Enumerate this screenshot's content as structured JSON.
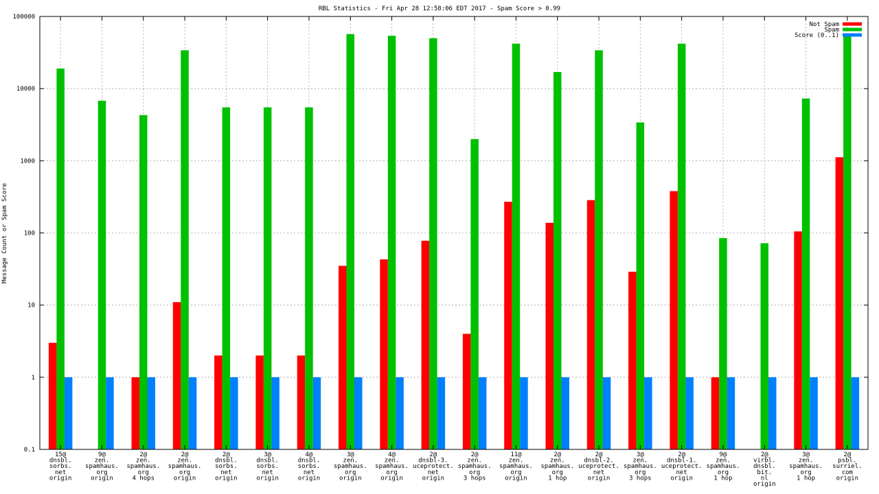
{
  "chart_data": {
    "type": "bar",
    "title": "RBL Statistics - Fri Apr 28 12:58:06 EDT 2017 - Spam Score > 0.99",
    "xlabel": "",
    "ylabel": "Message Count or Spam Score",
    "yscale": "log",
    "ylim": [
      0.1,
      100000
    ],
    "yticks": [
      "0.1",
      "1",
      "10",
      "100",
      "1000",
      "10000",
      "100000"
    ],
    "legend_position": "top-right",
    "grid": true,
    "categories": [
      [
        "15@",
        "dnsbl.",
        "sorbs.",
        "net",
        "origin"
      ],
      [
        "9@",
        "zen.",
        "spamhaus.",
        "org",
        "origin"
      ],
      [
        "2@",
        "zen.",
        "spamhaus.",
        "org",
        "4 hops"
      ],
      [
        "2@",
        "zen.",
        "spamhaus.",
        "org",
        "origin"
      ],
      [
        "2@",
        "dnsbl.",
        "sorbs.",
        "net",
        "origin"
      ],
      [
        "3@",
        "dnsbl.",
        "sorbs.",
        "net",
        "origin"
      ],
      [
        "4@",
        "dnsbl.",
        "sorbs.",
        "net",
        "origin"
      ],
      [
        "3@",
        "zen.",
        "spamhaus.",
        "org",
        "origin"
      ],
      [
        "4@",
        "zen.",
        "spamhaus.",
        "org",
        "origin"
      ],
      [
        "2@",
        "dnsbl-3.",
        "uceprotect.",
        "net",
        "origin"
      ],
      [
        "2@",
        "zen.",
        "spamhaus.",
        "org",
        "3 hops"
      ],
      [
        "11@",
        "zen.",
        "spamhaus.",
        "org",
        "origin"
      ],
      [
        "2@",
        "zen.",
        "spamhaus.",
        "org",
        "1 hop"
      ],
      [
        "2@",
        "dnsbl-2.",
        "uceprotect.",
        "net",
        "origin"
      ],
      [
        "3@",
        "zen.",
        "spamhaus.",
        "org",
        "3 hops"
      ],
      [
        "2@",
        "dnsbl-1.",
        "uceprotect.",
        "net",
        "origin"
      ],
      [
        "9@",
        "zen.",
        "spamhaus.",
        "org",
        "1 hop"
      ],
      [
        "2@",
        "virbl.",
        "dnsbl.",
        "bit.",
        "nl",
        "origin"
      ],
      [
        "3@",
        "zen.",
        "spamhaus.",
        "org",
        "1 hop"
      ],
      [
        "2@",
        "psbl.",
        "surriel.",
        "com",
        "origin"
      ]
    ],
    "series": [
      {
        "name": "Not Spam",
        "color": "#ff0000",
        "values": [
          3,
          null,
          1,
          11,
          2,
          2,
          2,
          35,
          43,
          78,
          4,
          270,
          138,
          285,
          29,
          380,
          1,
          null,
          105,
          1120
        ]
      },
      {
        "name": "Spam",
        "color": "#00c000",
        "values": [
          19000,
          6800,
          4300,
          34000,
          5500,
          5500,
          5500,
          57000,
          54000,
          50000,
          2000,
          42000,
          17000,
          34000,
          3400,
          42000,
          85,
          72,
          7300,
          53000
        ]
      },
      {
        "name": "Score (0..1)",
        "color": "#0080ff",
        "values": [
          1,
          1,
          1,
          1,
          1,
          1,
          1,
          1,
          1,
          1,
          1,
          1,
          1,
          1,
          1,
          1,
          1,
          1,
          1,
          1
        ]
      }
    ]
  }
}
